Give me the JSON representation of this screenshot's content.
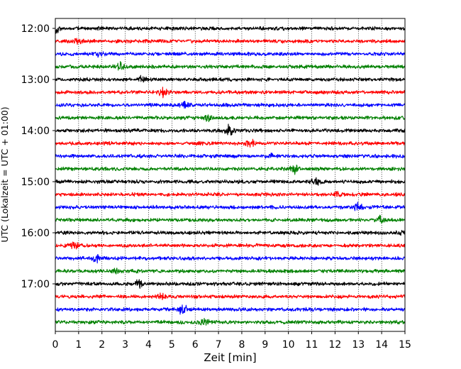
{
  "chart_data": {
    "type": "line",
    "title": "",
    "xlabel": "Zeit  [min]",
    "ylabel": "UTC (Lokalzeit = UTC + 01:00)",
    "xlim": [
      0,
      15
    ],
    "x_ticks": [
      "0",
      "1",
      "2",
      "3",
      "4",
      "5",
      "6",
      "7",
      "8",
      "9",
      "10",
      "11",
      "12",
      "13",
      "14",
      "15"
    ],
    "y_ticks": [
      "12:00",
      "13:00",
      "14:00",
      "15:00",
      "16:00",
      "17:00"
    ],
    "grid": "vertical-dotted",
    "trace_interval_min": 15,
    "series": [
      {
        "start": "12:00",
        "color": "#000000"
      },
      {
        "start": "12:15",
        "color": "#ff0000"
      },
      {
        "start": "12:30",
        "color": "#0000ff"
      },
      {
        "start": "12:45",
        "color": "#008000"
      },
      {
        "start": "13:00",
        "color": "#000000"
      },
      {
        "start": "13:15",
        "color": "#ff0000"
      },
      {
        "start": "13:30",
        "color": "#0000ff"
      },
      {
        "start": "13:45",
        "color": "#008000"
      },
      {
        "start": "14:00",
        "color": "#000000"
      },
      {
        "start": "14:15",
        "color": "#ff0000"
      },
      {
        "start": "14:30",
        "color": "#0000ff"
      },
      {
        "start": "14:45",
        "color": "#008000"
      },
      {
        "start": "15:00",
        "color": "#000000"
      },
      {
        "start": "15:15",
        "color": "#ff0000"
      },
      {
        "start": "15:30",
        "color": "#0000ff"
      },
      {
        "start": "15:45",
        "color": "#008000"
      },
      {
        "start": "16:00",
        "color": "#000000"
      },
      {
        "start": "16:15",
        "color": "#ff0000"
      },
      {
        "start": "16:30",
        "color": "#0000ff"
      },
      {
        "start": "16:45",
        "color": "#008000"
      },
      {
        "start": "17:00",
        "color": "#000000"
      },
      {
        "start": "17:15",
        "color": "#ff0000"
      },
      {
        "start": "17:30",
        "color": "#0000ff"
      },
      {
        "start": "17:45",
        "color": "#008000"
      }
    ]
  }
}
